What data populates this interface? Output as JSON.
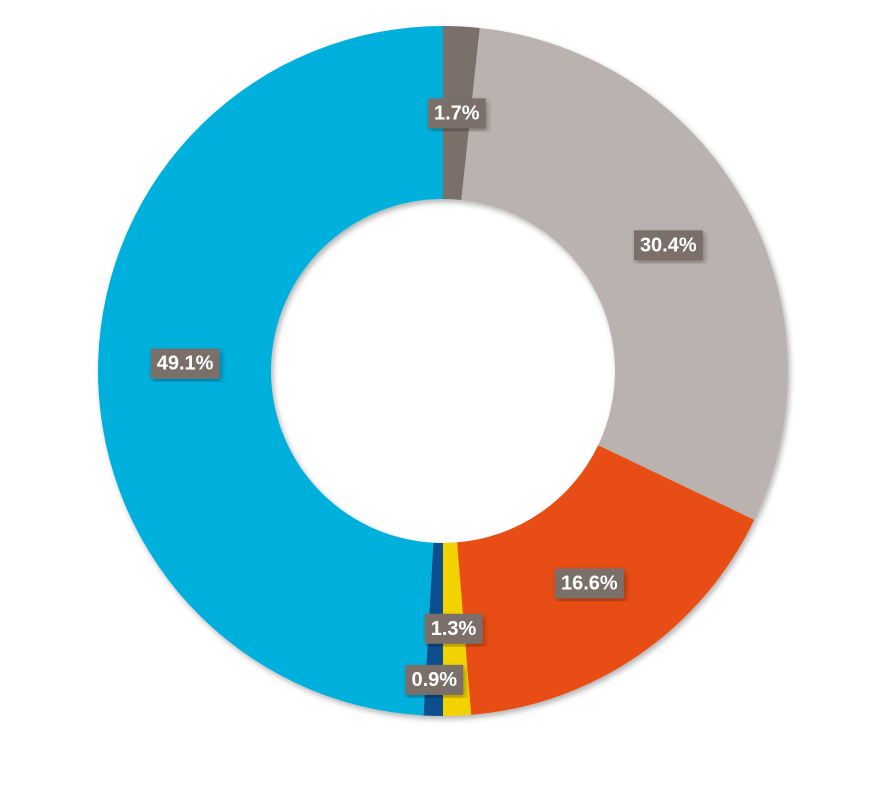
{
  "chart_data": {
    "type": "pie",
    "values": [
      1.7,
      30.4,
      16.6,
      1.3,
      0.9,
      49.1
    ],
    "value_labels": [
      "1.7%",
      "30.4%",
      "16.6%",
      "1.3%",
      "0.9%",
      "49.1%"
    ],
    "colors": [
      "#7a6f69",
      "#b9b2ae",
      "#e84e12",
      "#f2d200",
      "#0b4f8c",
      "#00b0dc"
    ]
  }
}
